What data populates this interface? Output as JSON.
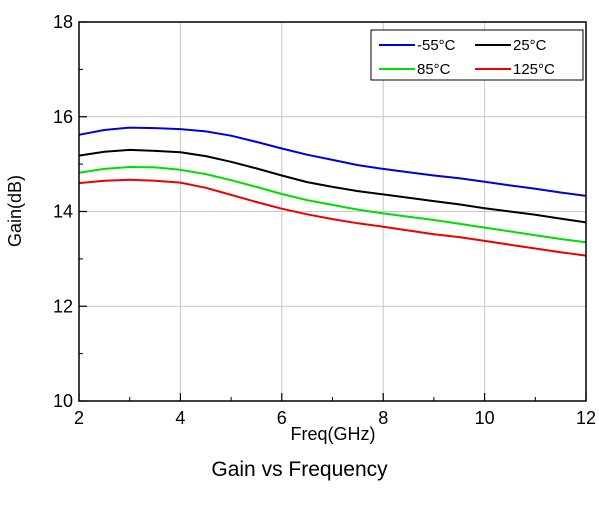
{
  "chart_data": {
    "type": "line",
    "title": "",
    "xlabel": "Freq(GHz)",
    "ylabel": "Gain(dB)",
    "xlim": [
      2,
      12
    ],
    "ylim": [
      10,
      18
    ],
    "xticks": [
      2,
      4,
      6,
      8,
      10,
      12
    ],
    "yticks": [
      10,
      12,
      14,
      16,
      18
    ],
    "grid": true,
    "legend_position": "top-right",
    "series": [
      {
        "name": "-55°C",
        "color": "#0000dd",
        "points": [
          [
            2,
            15.62
          ],
          [
            2.5,
            15.72
          ],
          [
            3,
            15.77
          ],
          [
            3.5,
            15.76
          ],
          [
            4,
            15.74
          ],
          [
            4.5,
            15.69
          ],
          [
            5,
            15.6
          ],
          [
            5.5,
            15.47
          ],
          [
            6,
            15.33
          ],
          [
            6.5,
            15.2
          ],
          [
            7,
            15.09
          ],
          [
            7.5,
            14.98
          ],
          [
            8,
            14.9
          ],
          [
            8.5,
            14.83
          ],
          [
            9,
            14.76
          ],
          [
            9.5,
            14.7
          ],
          [
            10,
            14.63
          ],
          [
            10.5,
            14.55
          ],
          [
            11,
            14.48
          ],
          [
            11.5,
            14.4
          ],
          [
            12,
            14.33
          ]
        ]
      },
      {
        "name": "25°C",
        "color": "#000000",
        "points": [
          [
            2,
            15.18
          ],
          [
            2.5,
            15.26
          ],
          [
            3,
            15.3
          ],
          [
            3.5,
            15.28
          ],
          [
            4,
            15.25
          ],
          [
            4.5,
            15.17
          ],
          [
            5,
            15.05
          ],
          [
            5.5,
            14.91
          ],
          [
            6,
            14.76
          ],
          [
            6.5,
            14.62
          ],
          [
            7,
            14.52
          ],
          [
            7.5,
            14.43
          ],
          [
            8,
            14.36
          ],
          [
            8.5,
            14.29
          ],
          [
            9,
            14.22
          ],
          [
            9.5,
            14.15
          ],
          [
            10,
            14.07
          ],
          [
            10.5,
            14.0
          ],
          [
            11,
            13.93
          ],
          [
            11.5,
            13.85
          ],
          [
            12,
            13.77
          ]
        ]
      },
      {
        "name": "85°C",
        "color": "#00dd00",
        "points": [
          [
            2,
            14.82
          ],
          [
            2.5,
            14.9
          ],
          [
            3,
            14.94
          ],
          [
            3.5,
            14.93
          ],
          [
            4,
            14.88
          ],
          [
            4.5,
            14.79
          ],
          [
            5,
            14.66
          ],
          [
            5.5,
            14.52
          ],
          [
            6,
            14.37
          ],
          [
            6.5,
            14.24
          ],
          [
            7,
            14.14
          ],
          [
            7.5,
            14.04
          ],
          [
            8,
            13.96
          ],
          [
            8.5,
            13.89
          ],
          [
            9,
            13.82
          ],
          [
            9.5,
            13.74
          ],
          [
            10,
            13.66
          ],
          [
            10.5,
            13.58
          ],
          [
            11,
            13.5
          ],
          [
            11.5,
            13.42
          ],
          [
            12,
            13.35
          ]
        ]
      },
      {
        "name": "125°C",
        "color": "#ee0000",
        "points": [
          [
            2,
            14.6
          ],
          [
            2.5,
            14.65
          ],
          [
            3,
            14.67
          ],
          [
            3.5,
            14.65
          ],
          [
            4,
            14.61
          ],
          [
            4.5,
            14.5
          ],
          [
            5,
            14.35
          ],
          [
            5.5,
            14.2
          ],
          [
            6,
            14.06
          ],
          [
            6.5,
            13.94
          ],
          [
            7,
            13.84
          ],
          [
            7.5,
            13.75
          ],
          [
            8,
            13.68
          ],
          [
            8.5,
            13.6
          ],
          [
            9,
            13.52
          ],
          [
            9.5,
            13.46
          ],
          [
            10,
            13.38
          ],
          [
            10.5,
            13.3
          ],
          [
            11,
            13.22
          ],
          [
            11.5,
            13.14
          ],
          [
            12,
            13.07
          ]
        ]
      }
    ]
  },
  "caption": "Gain vs  Frequency"
}
